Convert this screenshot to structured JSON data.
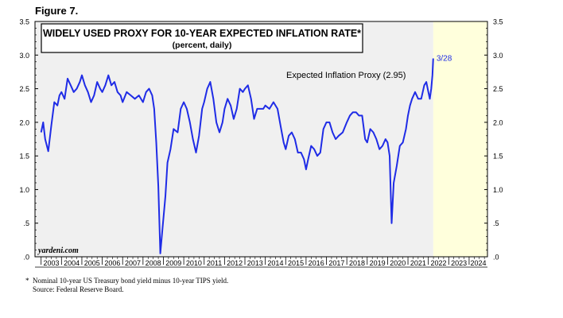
{
  "figure_label": "Figure 7.",
  "footnote": {
    "line1": "*  Nominal 10-year US Treasury bond yield minus 10-year TIPS yield.",
    "line2": "    Source: Federal Reserve Board."
  },
  "colors": {
    "series": "#1f2ce6",
    "history_fill": "#f0f0f0",
    "forecast_fill": "#ffffdc",
    "frame": "#000000"
  },
  "chart_data": {
    "type": "line",
    "title": "WIDELY USED PROXY FOR 10-YEAR EXPECTED INFLATION RATE*",
    "subtitle": "(percent, daily)",
    "xlabel": "",
    "ylabel": "",
    "xlim": [
      2002.7,
      2024.9
    ],
    "ylim": [
      0,
      3.5
    ],
    "yticks": [
      0,
      0.5,
      1.0,
      1.5,
      2.0,
      2.5,
      3.0,
      3.5
    ],
    "ytick_labels": [
      ".0",
      ".5",
      "1.0",
      "1.5",
      "2.0",
      "2.5",
      "3.0",
      "3.5"
    ],
    "xtick_labels": [
      "2003",
      "2004",
      "2005",
      "2006",
      "2007",
      "2008",
      "2009",
      "2010",
      "2011",
      "2012",
      "2013",
      "2014",
      "2015",
      "2016",
      "2017",
      "2018",
      "2019",
      "2020",
      "2021",
      "2022",
      "2023",
      "2024"
    ],
    "grid": false,
    "shaded_until": 2022.24,
    "annotations": {
      "series_label": "Expected Inflation Proxy (2.95)",
      "end_date": "3/28",
      "watermark": "yardeni.com"
    },
    "series": [
      {
        "points": [
          [
            2003.0,
            1.85
          ],
          [
            2003.1,
            2.0
          ],
          [
            2003.2,
            1.75
          ],
          [
            2003.35,
            1.57
          ],
          [
            2003.5,
            1.95
          ],
          [
            2003.65,
            2.3
          ],
          [
            2003.8,
            2.25
          ],
          [
            2003.9,
            2.4
          ],
          [
            2004.0,
            2.45
          ],
          [
            2004.15,
            2.35
          ],
          [
            2004.3,
            2.65
          ],
          [
            2004.45,
            2.55
          ],
          [
            2004.6,
            2.45
          ],
          [
            2004.75,
            2.5
          ],
          [
            2004.9,
            2.6
          ],
          [
            2005.0,
            2.7
          ],
          [
            2005.15,
            2.55
          ],
          [
            2005.3,
            2.45
          ],
          [
            2005.45,
            2.3
          ],
          [
            2005.6,
            2.4
          ],
          [
            2005.75,
            2.6
          ],
          [
            2005.9,
            2.5
          ],
          [
            2006.0,
            2.45
          ],
          [
            2006.15,
            2.55
          ],
          [
            2006.3,
            2.7
          ],
          [
            2006.45,
            2.55
          ],
          [
            2006.6,
            2.6
          ],
          [
            2006.75,
            2.45
          ],
          [
            2006.9,
            2.4
          ],
          [
            2007.0,
            2.3
          ],
          [
            2007.2,
            2.45
          ],
          [
            2007.4,
            2.4
          ],
          [
            2007.6,
            2.35
          ],
          [
            2007.8,
            2.4
          ],
          [
            2008.0,
            2.3
          ],
          [
            2008.15,
            2.45
          ],
          [
            2008.3,
            2.5
          ],
          [
            2008.45,
            2.4
          ],
          [
            2008.55,
            2.2
          ],
          [
            2008.65,
            1.7
          ],
          [
            2008.75,
            1.05
          ],
          [
            2008.85,
            0.05
          ],
          [
            2008.95,
            0.4
          ],
          [
            2009.1,
            0.9
          ],
          [
            2009.2,
            1.4
          ],
          [
            2009.35,
            1.6
          ],
          [
            2009.5,
            1.9
          ],
          [
            2009.7,
            1.85
          ],
          [
            2009.85,
            2.2
          ],
          [
            2010.0,
            2.3
          ],
          [
            2010.15,
            2.2
          ],
          [
            2010.3,
            2.0
          ],
          [
            2010.45,
            1.75
          ],
          [
            2010.6,
            1.55
          ],
          [
            2010.75,
            1.8
          ],
          [
            2010.9,
            2.2
          ],
          [
            2011.0,
            2.3
          ],
          [
            2011.15,
            2.5
          ],
          [
            2011.3,
            2.6
          ],
          [
            2011.45,
            2.35
          ],
          [
            2011.6,
            2.0
          ],
          [
            2011.75,
            1.85
          ],
          [
            2011.9,
            2.0
          ],
          [
            2012.0,
            2.2
          ],
          [
            2012.15,
            2.35
          ],
          [
            2012.3,
            2.25
          ],
          [
            2012.45,
            2.05
          ],
          [
            2012.6,
            2.2
          ],
          [
            2012.75,
            2.5
          ],
          [
            2012.9,
            2.45
          ],
          [
            2013.0,
            2.5
          ],
          [
            2013.15,
            2.55
          ],
          [
            2013.3,
            2.35
          ],
          [
            2013.45,
            2.05
          ],
          [
            2013.6,
            2.2
          ],
          [
            2013.75,
            2.2
          ],
          [
            2013.9,
            2.2
          ],
          [
            2014.0,
            2.25
          ],
          [
            2014.2,
            2.2
          ],
          [
            2014.4,
            2.3
          ],
          [
            2014.6,
            2.2
          ],
          [
            2014.75,
            1.95
          ],
          [
            2014.9,
            1.7
          ],
          [
            2015.0,
            1.6
          ],
          [
            2015.15,
            1.8
          ],
          [
            2015.3,
            1.85
          ],
          [
            2015.45,
            1.75
          ],
          [
            2015.6,
            1.55
          ],
          [
            2015.75,
            1.55
          ],
          [
            2015.9,
            1.45
          ],
          [
            2016.0,
            1.3
          ],
          [
            2016.1,
            1.45
          ],
          [
            2016.25,
            1.65
          ],
          [
            2016.4,
            1.6
          ],
          [
            2016.55,
            1.5
          ],
          [
            2016.7,
            1.55
          ],
          [
            2016.85,
            1.9
          ],
          [
            2017.0,
            2.0
          ],
          [
            2017.15,
            2.0
          ],
          [
            2017.3,
            1.85
          ],
          [
            2017.45,
            1.75
          ],
          [
            2017.6,
            1.8
          ],
          [
            2017.8,
            1.85
          ],
          [
            2018.0,
            2.0
          ],
          [
            2018.15,
            2.1
          ],
          [
            2018.3,
            2.15
          ],
          [
            2018.45,
            2.15
          ],
          [
            2018.6,
            2.1
          ],
          [
            2018.75,
            2.1
          ],
          [
            2018.9,
            1.75
          ],
          [
            2019.0,
            1.7
          ],
          [
            2019.15,
            1.9
          ],
          [
            2019.3,
            1.85
          ],
          [
            2019.45,
            1.75
          ],
          [
            2019.6,
            1.6
          ],
          [
            2019.75,
            1.65
          ],
          [
            2019.9,
            1.75
          ],
          [
            2020.0,
            1.7
          ],
          [
            2020.1,
            1.5
          ],
          [
            2020.2,
            0.5
          ],
          [
            2020.3,
            1.1
          ],
          [
            2020.45,
            1.35
          ],
          [
            2020.6,
            1.65
          ],
          [
            2020.75,
            1.7
          ],
          [
            2020.9,
            1.9
          ],
          [
            2021.0,
            2.1
          ],
          [
            2021.1,
            2.25
          ],
          [
            2021.2,
            2.35
          ],
          [
            2021.35,
            2.45
          ],
          [
            2021.5,
            2.35
          ],
          [
            2021.65,
            2.35
          ],
          [
            2021.8,
            2.55
          ],
          [
            2021.9,
            2.6
          ],
          [
            2022.0,
            2.45
          ],
          [
            2022.07,
            2.35
          ],
          [
            2022.14,
            2.5
          ],
          [
            2022.2,
            2.7
          ],
          [
            2022.24,
            2.95
          ]
        ]
      }
    ]
  }
}
